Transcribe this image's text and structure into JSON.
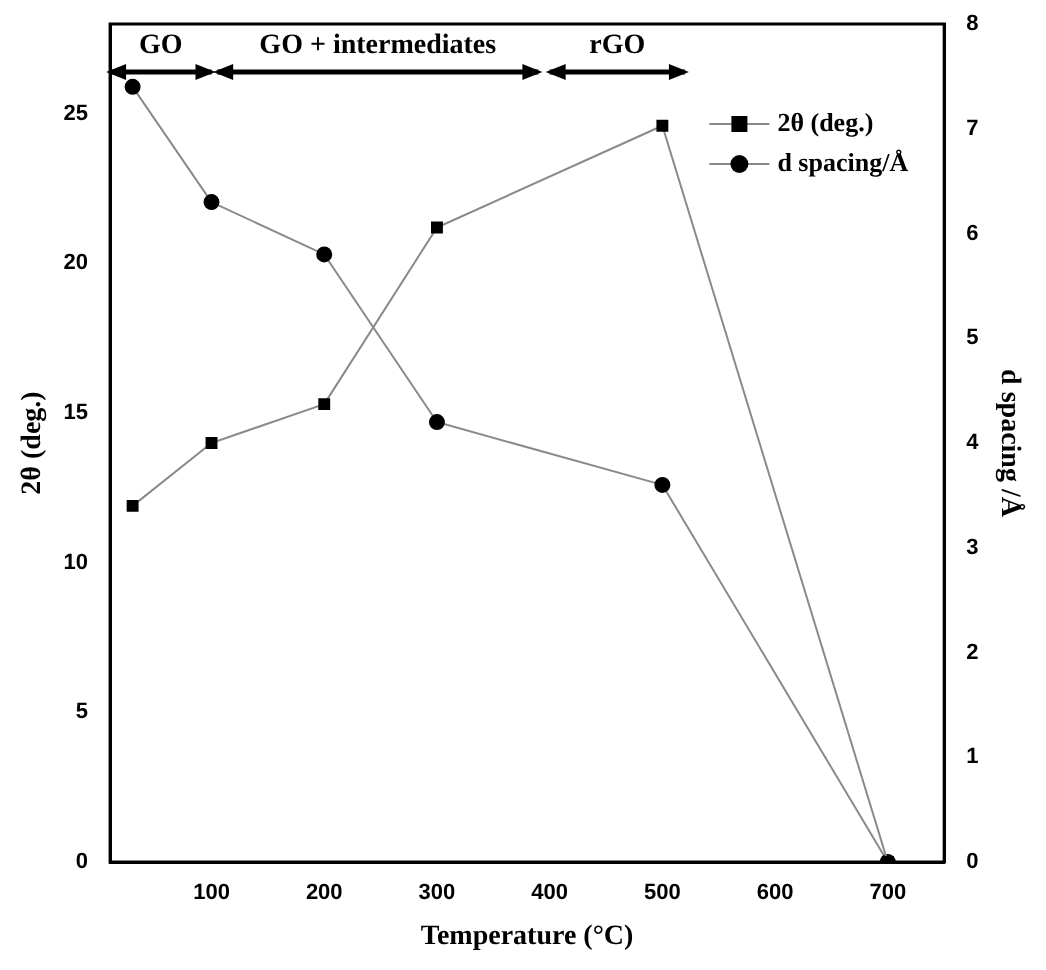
{
  "chart_data": {
    "type": "line",
    "xlabel": "Temperature (°C)",
    "ylabel": "2θ (deg.)",
    "y2label": "d spacing /Å",
    "x": [
      30,
      100,
      200,
      300,
      500,
      700
    ],
    "series": [
      {
        "name": "2θ (deg.)",
        "color": "#000000",
        "marker": "square",
        "values": [
          11.9,
          14.0,
          15.3,
          21.2,
          24.6,
          0
        ]
      },
      {
        "name": "d spacing/Å",
        "color": "#000000",
        "marker": "circle",
        "axis": "y2",
        "values": [
          7.4,
          6.3,
          5.8,
          4.2,
          3.6,
          0
        ]
      }
    ],
    "xlim": [
      10,
      750
    ],
    "xticks": [
      100,
      200,
      300,
      400,
      500,
      600,
      700
    ],
    "ylim": [
      0,
      28
    ],
    "yticks": [
      0,
      5,
      10,
      15,
      20,
      25
    ],
    "y2lim": [
      0,
      8
    ],
    "y2ticks": [
      0,
      1,
      2,
      3,
      4,
      5,
      6,
      7,
      8
    ],
    "annotations": [
      "GO",
      "GO + intermediates",
      "rGO"
    ],
    "legend": "top right",
    "grid": false
  }
}
